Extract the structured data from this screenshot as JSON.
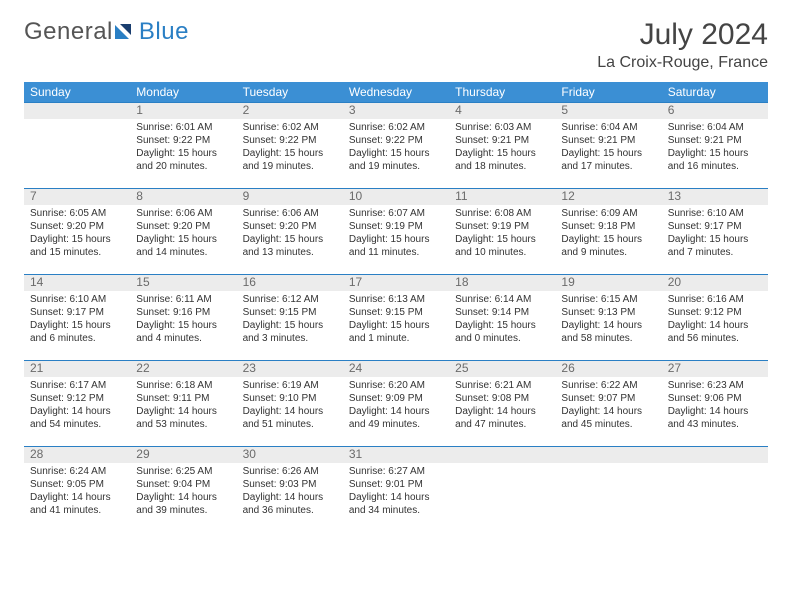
{
  "logo": {
    "text1": "General",
    "text2": "Blue"
  },
  "title": "July 2024",
  "location": "La Croix-Rouge, France",
  "colors": {
    "header_bg": "#3b8fd4",
    "header_text": "#ffffff",
    "daynum_bg": "#ececec",
    "daynum_border": "#2a7fc4",
    "daynum_text": "#6b6b6b",
    "body_text": "#333333",
    "logo_gray": "#555555",
    "logo_blue": "#2a7fc4"
  },
  "day_names": [
    "Sunday",
    "Monday",
    "Tuesday",
    "Wednesday",
    "Thursday",
    "Friday",
    "Saturday"
  ],
  "weeks": [
    [
      {
        "day": "",
        "sunrise": "",
        "sunset": "",
        "daylight": ""
      },
      {
        "day": "1",
        "sunrise": "Sunrise: 6:01 AM",
        "sunset": "Sunset: 9:22 PM",
        "daylight": "Daylight: 15 hours and 20 minutes."
      },
      {
        "day": "2",
        "sunrise": "Sunrise: 6:02 AM",
        "sunset": "Sunset: 9:22 PM",
        "daylight": "Daylight: 15 hours and 19 minutes."
      },
      {
        "day": "3",
        "sunrise": "Sunrise: 6:02 AM",
        "sunset": "Sunset: 9:22 PM",
        "daylight": "Daylight: 15 hours and 19 minutes."
      },
      {
        "day": "4",
        "sunrise": "Sunrise: 6:03 AM",
        "sunset": "Sunset: 9:21 PM",
        "daylight": "Daylight: 15 hours and 18 minutes."
      },
      {
        "day": "5",
        "sunrise": "Sunrise: 6:04 AM",
        "sunset": "Sunset: 9:21 PM",
        "daylight": "Daylight: 15 hours and 17 minutes."
      },
      {
        "day": "6",
        "sunrise": "Sunrise: 6:04 AM",
        "sunset": "Sunset: 9:21 PM",
        "daylight": "Daylight: 15 hours and 16 minutes."
      }
    ],
    [
      {
        "day": "7",
        "sunrise": "Sunrise: 6:05 AM",
        "sunset": "Sunset: 9:20 PM",
        "daylight": "Daylight: 15 hours and 15 minutes."
      },
      {
        "day": "8",
        "sunrise": "Sunrise: 6:06 AM",
        "sunset": "Sunset: 9:20 PM",
        "daylight": "Daylight: 15 hours and 14 minutes."
      },
      {
        "day": "9",
        "sunrise": "Sunrise: 6:06 AM",
        "sunset": "Sunset: 9:20 PM",
        "daylight": "Daylight: 15 hours and 13 minutes."
      },
      {
        "day": "10",
        "sunrise": "Sunrise: 6:07 AM",
        "sunset": "Sunset: 9:19 PM",
        "daylight": "Daylight: 15 hours and 11 minutes."
      },
      {
        "day": "11",
        "sunrise": "Sunrise: 6:08 AM",
        "sunset": "Sunset: 9:19 PM",
        "daylight": "Daylight: 15 hours and 10 minutes."
      },
      {
        "day": "12",
        "sunrise": "Sunrise: 6:09 AM",
        "sunset": "Sunset: 9:18 PM",
        "daylight": "Daylight: 15 hours and 9 minutes."
      },
      {
        "day": "13",
        "sunrise": "Sunrise: 6:10 AM",
        "sunset": "Sunset: 9:17 PM",
        "daylight": "Daylight: 15 hours and 7 minutes."
      }
    ],
    [
      {
        "day": "14",
        "sunrise": "Sunrise: 6:10 AM",
        "sunset": "Sunset: 9:17 PM",
        "daylight": "Daylight: 15 hours and 6 minutes."
      },
      {
        "day": "15",
        "sunrise": "Sunrise: 6:11 AM",
        "sunset": "Sunset: 9:16 PM",
        "daylight": "Daylight: 15 hours and 4 minutes."
      },
      {
        "day": "16",
        "sunrise": "Sunrise: 6:12 AM",
        "sunset": "Sunset: 9:15 PM",
        "daylight": "Daylight: 15 hours and 3 minutes."
      },
      {
        "day": "17",
        "sunrise": "Sunrise: 6:13 AM",
        "sunset": "Sunset: 9:15 PM",
        "daylight": "Daylight: 15 hours and 1 minute."
      },
      {
        "day": "18",
        "sunrise": "Sunrise: 6:14 AM",
        "sunset": "Sunset: 9:14 PM",
        "daylight": "Daylight: 15 hours and 0 minutes."
      },
      {
        "day": "19",
        "sunrise": "Sunrise: 6:15 AM",
        "sunset": "Sunset: 9:13 PM",
        "daylight": "Daylight: 14 hours and 58 minutes."
      },
      {
        "day": "20",
        "sunrise": "Sunrise: 6:16 AM",
        "sunset": "Sunset: 9:12 PM",
        "daylight": "Daylight: 14 hours and 56 minutes."
      }
    ],
    [
      {
        "day": "21",
        "sunrise": "Sunrise: 6:17 AM",
        "sunset": "Sunset: 9:12 PM",
        "daylight": "Daylight: 14 hours and 54 minutes."
      },
      {
        "day": "22",
        "sunrise": "Sunrise: 6:18 AM",
        "sunset": "Sunset: 9:11 PM",
        "daylight": "Daylight: 14 hours and 53 minutes."
      },
      {
        "day": "23",
        "sunrise": "Sunrise: 6:19 AM",
        "sunset": "Sunset: 9:10 PM",
        "daylight": "Daylight: 14 hours and 51 minutes."
      },
      {
        "day": "24",
        "sunrise": "Sunrise: 6:20 AM",
        "sunset": "Sunset: 9:09 PM",
        "daylight": "Daylight: 14 hours and 49 minutes."
      },
      {
        "day": "25",
        "sunrise": "Sunrise: 6:21 AM",
        "sunset": "Sunset: 9:08 PM",
        "daylight": "Daylight: 14 hours and 47 minutes."
      },
      {
        "day": "26",
        "sunrise": "Sunrise: 6:22 AM",
        "sunset": "Sunset: 9:07 PM",
        "daylight": "Daylight: 14 hours and 45 minutes."
      },
      {
        "day": "27",
        "sunrise": "Sunrise: 6:23 AM",
        "sunset": "Sunset: 9:06 PM",
        "daylight": "Daylight: 14 hours and 43 minutes."
      }
    ],
    [
      {
        "day": "28",
        "sunrise": "Sunrise: 6:24 AM",
        "sunset": "Sunset: 9:05 PM",
        "daylight": "Daylight: 14 hours and 41 minutes."
      },
      {
        "day": "29",
        "sunrise": "Sunrise: 6:25 AM",
        "sunset": "Sunset: 9:04 PM",
        "daylight": "Daylight: 14 hours and 39 minutes."
      },
      {
        "day": "30",
        "sunrise": "Sunrise: 6:26 AM",
        "sunset": "Sunset: 9:03 PM",
        "daylight": "Daylight: 14 hours and 36 minutes."
      },
      {
        "day": "31",
        "sunrise": "Sunrise: 6:27 AM",
        "sunset": "Sunset: 9:01 PM",
        "daylight": "Daylight: 14 hours and 34 minutes."
      },
      {
        "day": "",
        "sunrise": "",
        "sunset": "",
        "daylight": ""
      },
      {
        "day": "",
        "sunrise": "",
        "sunset": "",
        "daylight": ""
      },
      {
        "day": "",
        "sunrise": "",
        "sunset": "",
        "daylight": ""
      }
    ]
  ]
}
